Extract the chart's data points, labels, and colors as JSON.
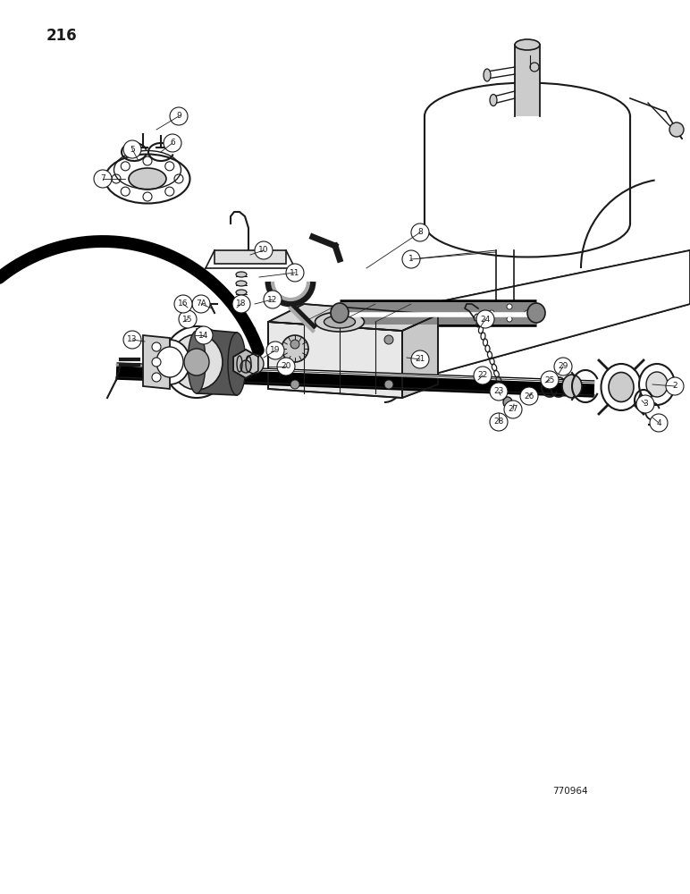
{
  "page_number": "216",
  "figure_number": "770964",
  "background_color": "#ffffff",
  "line_color": "#1a1a1a",
  "figsize": [
    7.72,
    10.0
  ],
  "dpi": 100,
  "page_num_fontsize": 12,
  "fig_num_fontsize": 7.5
}
